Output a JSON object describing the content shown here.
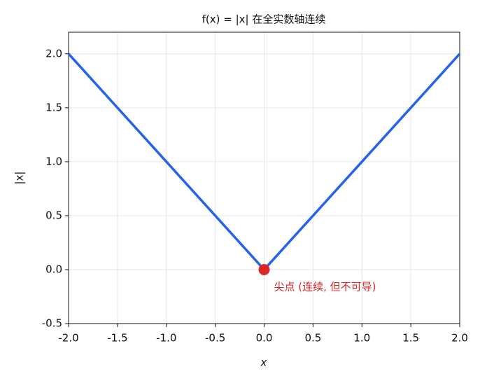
{
  "chart_data": {
    "type": "line",
    "title": "f(x) = |x| 在全实数轴连续",
    "x_label": "x",
    "y_label": "|x|",
    "x": [
      -2,
      0,
      2
    ],
    "series": [
      {
        "color": "#2563eb",
        "values": [
          2,
          0,
          2
        ]
      }
    ],
    "point": {
      "x": 0,
      "y": 0,
      "color": "#dc2626"
    },
    "annotation": "尖点 (连续, 但不可导)",
    "annotation_color": "#dc2626",
    "xlim": [
      -2,
      2
    ],
    "ylim": [
      -0.5,
      2.2
    ],
    "xticks": [
      {
        "value": -2,
        "label": "-2.0"
      },
      -1.5,
      {
        "value": -1,
        "label": "-1.0"
      },
      -0.5,
      {
        "value": 0,
        "label": "0.0"
      },
      0.5,
      {
        "value": 1,
        "label": "1.0"
      },
      1.5,
      {
        "value": 2,
        "label": "2.0"
      }
    ],
    "yticks": [
      -0.5,
      {
        "value": 0,
        "label": "0.0"
      },
      0.5,
      {
        "value": 1,
        "label": "1.0"
      },
      1.5,
      {
        "value": 2,
        "label": "2.0"
      }
    ],
    "grid": true
  }
}
